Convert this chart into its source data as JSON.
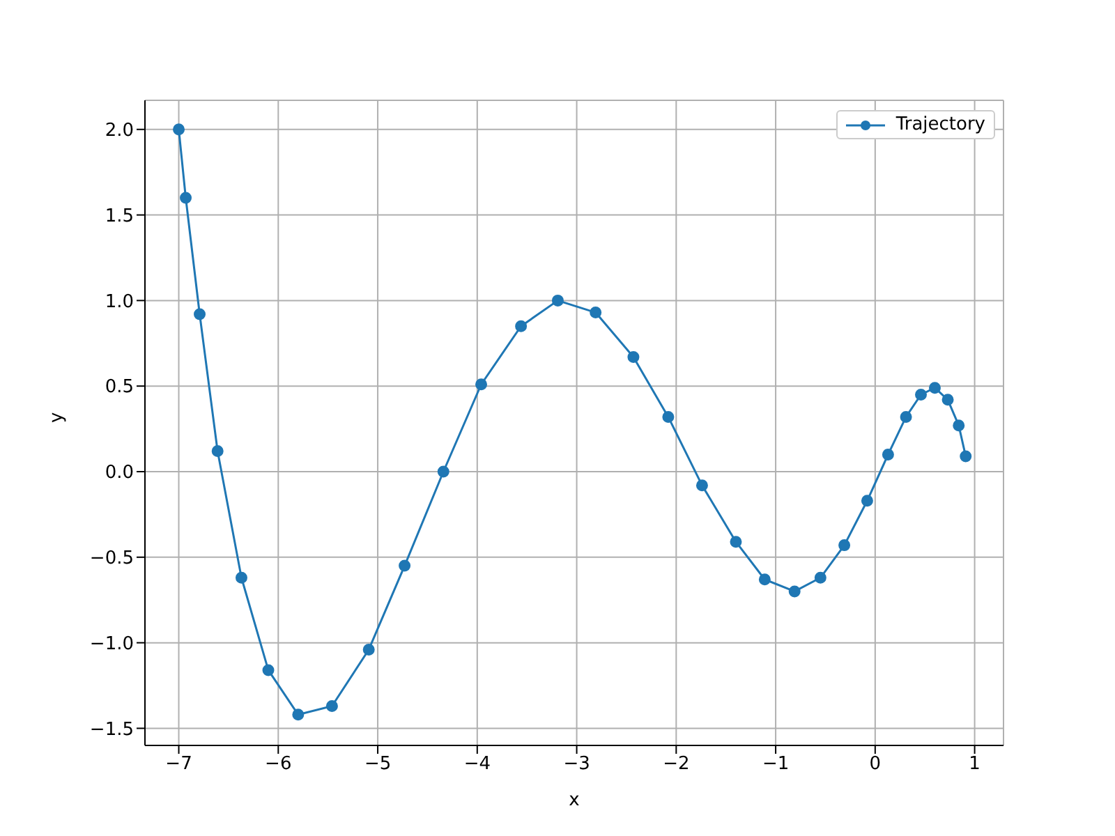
{
  "chart_data": {
    "type": "line",
    "xlabel": "x",
    "ylabel": "y",
    "x": [
      -7,
      -6.93,
      -6.79,
      -6.61,
      -6.37,
      -6.1,
      -5.8,
      -5.46,
      -5.09,
      -4.73,
      -4.34,
      -3.96,
      -3.56,
      -3.19,
      -2.81,
      -2.43,
      -2.08,
      -1.74,
      -1.4,
      -1.11,
      -0.81,
      -0.55,
      -0.31,
      -0.08,
      0.13,
      0.31,
      0.46,
      0.6,
      0.73,
      0.84,
      0.91
    ],
    "series": [
      {
        "name": "Trajectory",
        "color": "#1f77b4",
        "values": [
          2.0,
          1.6,
          0.92,
          0.12,
          -0.62,
          -1.16,
          -1.42,
          -1.37,
          -1.04,
          -0.55,
          0.0,
          0.51,
          0.85,
          1.0,
          0.93,
          0.67,
          0.32,
          -0.08,
          -0.41,
          -0.63,
          -0.7,
          -0.62,
          -0.43,
          -0.17,
          0.1,
          0.32,
          0.45,
          0.49,
          0.42,
          0.27,
          0.09
        ]
      }
    ],
    "xlim": [
      -7.34,
      1.29
    ],
    "ylim": [
      -1.6,
      2.17
    ],
    "xticks": [
      -7,
      -6,
      -5,
      -4,
      -3,
      -2,
      -1,
      0,
      1
    ],
    "yticks": [
      -1.5,
      {
        "value": -1,
        "label": "−1.0"
      },
      -0.5,
      {
        "value": 0,
        "label": "0.0"
      },
      0.5,
      {
        "value": 1,
        "label": "1.0"
      },
      1.5,
      {
        "value": 2,
        "label": "2.0"
      }
    ],
    "grid": true,
    "legend": "top right",
    "marker": "circle",
    "line_style": "solid"
  }
}
